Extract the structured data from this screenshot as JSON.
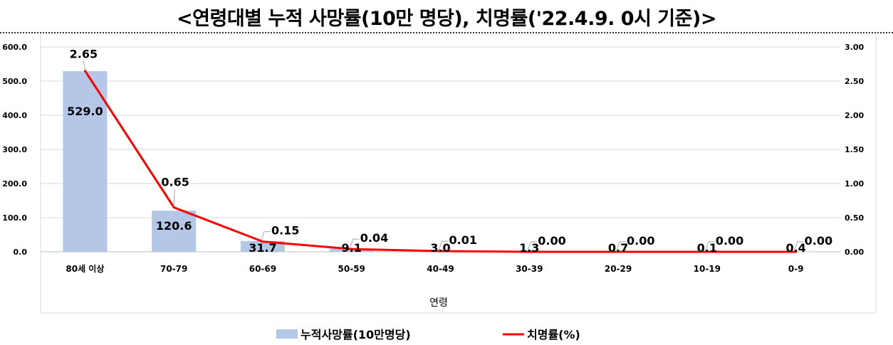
{
  "title": "<연령대별 누적 사망률(10만 명당), 치명률('22.4.9. 0시 기준)>",
  "chart_data": {
    "type": "bar",
    "categories": [
      "80세 이상",
      "70-79",
      "60-69",
      "50-59",
      "40-49",
      "30-39",
      "20-29",
      "10-19",
      "0-9"
    ],
    "xlabel": "연령",
    "series": [
      {
        "name": "누적사망률(10만명당)",
        "type": "bar",
        "axis": "left",
        "color": "#b4c7e7",
        "values": [
          529.0,
          120.6,
          31.7,
          9.1,
          3.0,
          1.3,
          0.7,
          0.1,
          0.4
        ],
        "labels": [
          "529.0",
          "120.6",
          "31.7",
          "9.1",
          "3.0",
          "1.3",
          "0.7",
          "0.1",
          "0.4"
        ]
      },
      {
        "name": "치명률(%)",
        "type": "line",
        "axis": "right",
        "color": "#ff0000",
        "values": [
          2.65,
          0.65,
          0.15,
          0.04,
          0.01,
          0.0,
          0.0,
          0.0,
          0.0
        ],
        "labels": [
          "2.65",
          "0.65",
          "0.15",
          "0.04",
          "0.01",
          "0.00",
          "0.00",
          "0.00",
          "0.00"
        ]
      }
    ],
    "y_left": {
      "ylim": [
        0,
        600
      ],
      "ticks": [
        "0.0",
        "100.0",
        "200.0",
        "300.0",
        "400.0",
        "500.0",
        "600.0"
      ]
    },
    "y_right": {
      "ylim": [
        0,
        3
      ],
      "ticks": [
        "0.00",
        "0.50",
        "1.00",
        "1.50",
        "2.00",
        "2.50",
        "3.00"
      ]
    },
    "grid": true,
    "legend": "bottom-center"
  }
}
